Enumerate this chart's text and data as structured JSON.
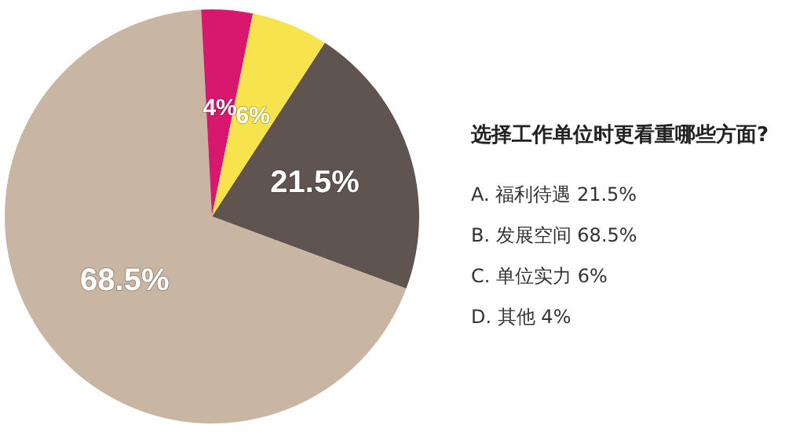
{
  "chart_data": {
    "type": "pie",
    "title": "选择工作单位时更看重哪些方面?",
    "categories": [
      null,
      null,
      null,
      null
    ],
    "values": [
      21.5,
      68.5,
      4,
      6
    ],
    "colors": [
      "#5f5450",
      "#c8b6a2",
      "#d8186e",
      "#f7e34e"
    ],
    "value_labels": [
      "21.5%",
      "68.5%",
      "4%",
      "6%"
    ],
    "annotations": [
      "A. 福利待遇 21.5%",
      "B. 发展空间 68.5%",
      "C. 单位实力 6%",
      "D. 其他 4%"
    ]
  }
}
